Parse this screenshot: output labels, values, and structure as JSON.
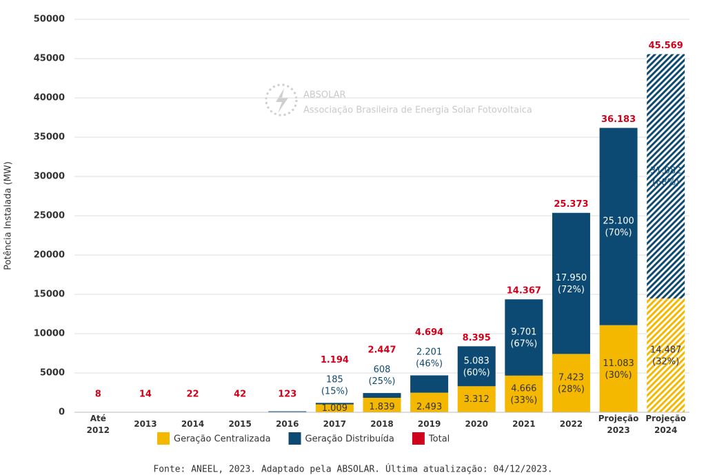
{
  "chart_data": {
    "type": "stacked-bar",
    "y_label": "Potência Instalada (MW)",
    "watermark": {
      "title": "ABSOLAR",
      "subtitle": "Associação Brasileira de Energia Solar Fotovoltaica"
    },
    "source": "Fonte: ANEEL, 2023. Adaptado pela ABSOLAR. Última atualização: 04/12/2023.",
    "categories": [
      "Até 2012",
      "2013",
      "2014",
      "2015",
      "2016",
      "2017",
      "2018",
      "2019",
      "2020",
      "2021",
      "2022",
      "Projeção 2023",
      "Projeção 2024"
    ],
    "series": [
      {
        "name": "Geração Centralizada",
        "color": "#f5b800",
        "values": [
          0,
          0,
          0,
          0,
          24,
          1009,
          1839,
          2493,
          3312,
          4666,
          7423,
          11083,
          14487
        ],
        "value_labels": [
          null,
          null,
          null,
          null,
          null,
          "1.009",
          "1.839",
          "2.493",
          "3.312",
          "4.666 (33%)",
          "7.423 (28%)",
          "11.083 (30%)",
          "14.487 (32%)"
        ]
      },
      {
        "name": "Geração Distribuída",
        "color": "#0d4a73",
        "values": [
          8,
          14,
          22,
          42,
          99,
          185,
          608,
          2201,
          5083,
          9701,
          17950,
          25100,
          31082
        ],
        "value_labels": [
          null,
          null,
          null,
          null,
          null,
          "185 (15%)",
          "608 (25%)",
          "2.201 (46%)",
          "5.083 (60%)",
          "9.701 (67%)",
          "17.950 (72%)",
          "25.100 (70%)",
          "31.082 (68%)"
        ]
      }
    ],
    "totals": {
      "name": "Total",
      "color": "#d0021b",
      "values": [
        8,
        14,
        22,
        42,
        123,
        1194,
        2447,
        4694,
        8395,
        14367,
        25373,
        36183,
        45569
      ],
      "value_labels": [
        "8",
        "14",
        "22",
        "42",
        "123",
        "1.194",
        "2.447",
        "4.694",
        "8.395",
        "14.367",
        "25.373",
        "36.183",
        "45.569"
      ]
    },
    "hatched": [
      false,
      false,
      false,
      false,
      false,
      false,
      false,
      false,
      false,
      false,
      false,
      false,
      true
    ],
    "ylim": [
      0,
      50000
    ],
    "yticks": [
      0,
      5000,
      10000,
      15000,
      20000,
      25000,
      30000,
      35000,
      40000,
      45000,
      50000
    ],
    "grid": true
  }
}
